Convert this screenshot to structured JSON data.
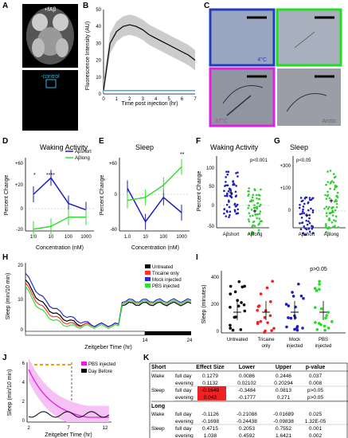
{
  "labels": {
    "A": "A",
    "B": "B",
    "C": "C",
    "D": "D",
    "E": "E",
    "F": "F",
    "G": "G",
    "H": "H",
    "I": "I",
    "J": "J",
    "K": "K"
  },
  "panelA": {
    "top": "+fAβ",
    "bottom": "-control"
  },
  "panelB": {
    "ylabel": "Fluorescence Intensity (AU)",
    "xlabel": "Time post injection (hr)"
  },
  "panelC": {
    "t1": "4°C",
    "t2": "37°C",
    "t3": "Arctic"
  },
  "panelD": {
    "title": "Waking Activity",
    "ylabel": "Percent Change",
    "xlabel": "Concentration (nM)",
    "legend1": "Aβshort",
    "legend2": "Aβlong",
    "star1": "*",
    "star2": "****"
  },
  "panelE": {
    "title": "Sleep",
    "ylabel": "Percent Change",
    "xlabel": "Concentration (nM)",
    "star": "**"
  },
  "panelF": {
    "title": "Waking Activity",
    "ylabel": "Percent Change",
    "p": "p<0.001",
    "x1": "Aβshort",
    "x2": "Aβlong"
  },
  "panelG": {
    "title": "Sleep",
    "p": "p<0.05",
    "x1": "Aβshort",
    "x2": "Aβlong"
  },
  "panelH": {
    "ylabel": "Sleep (min/10 min)",
    "xlabel": "Zeitgeber Time (hr)",
    "legend": [
      "Untreated",
      "Tricaine only",
      "Mock injected",
      "PBS injected"
    ]
  },
  "panelI": {
    "ylabel": "Sleep (minutes)",
    "p": "p>0.05",
    "groups": [
      "Untreated",
      "Tricaine only",
      "Mock injected",
      "PBS injected"
    ]
  },
  "panelJ": {
    "ylabel": "Sleep (min/10 min)",
    "xlabel": "Zeitgeber Time (hr)",
    "legend": [
      "PBS injected",
      "Day Before"
    ]
  },
  "panelK": {
    "headers": [
      "Short",
      "Effect Size",
      "Lower",
      "Upper",
      "p-value"
    ],
    "rows": [
      [
        "Wake",
        "full day",
        "0.1279",
        "0.0086",
        "0.2446",
        "0.037"
      ],
      [
        "",
        "evening",
        "0.1132",
        "0.02102",
        "0.20294",
        "0.008"
      ],
      [
        "Sleep",
        "full day",
        "-0.1649",
        "-0.3484",
        "0.0813",
        "p>0.05"
      ],
      [
        "",
        "evening",
        "0.042",
        "-0.1777",
        "0.271",
        "p>0.05"
      ]
    ],
    "long_header": "Long",
    "long_rows": [
      [
        "Wake",
        "full day",
        "-0.1126",
        "-0.21088",
        "-0.01689",
        "0.025"
      ],
      [
        "",
        "evening",
        "-0.1698",
        "-0.24438",
        "-0.09838",
        "1.32E-05"
      ],
      [
        "Sleep",
        "full day",
        "0.4715",
        "0.2053",
        "0.7552",
        "0.001"
      ],
      [
        "",
        "evening",
        "1.038",
        "0.4592",
        "1.6421",
        "0.002"
      ]
    ]
  },
  "chart_data": [
    {
      "panel": "B",
      "type": "line",
      "xlabel": "Time post injection (hr)",
      "ylabel": "Fluorescence Intensity (AU)",
      "xlim": [
        0,
        7
      ],
      "ylim": [
        0,
        50
      ],
      "series": [
        {
          "name": "+fAβ",
          "x": [
            0,
            0.5,
            1,
            1.5,
            2,
            2.5,
            3,
            3.5,
            4,
            4.5,
            5,
            5.5,
            6,
            6.5,
            7
          ],
          "values": [
            2,
            30,
            37,
            40,
            41,
            40,
            38,
            35,
            33,
            31,
            29,
            27,
            25,
            23,
            20
          ]
        },
        {
          "name": "-control",
          "x": [
            0,
            1,
            2,
            3,
            4,
            5,
            6,
            7
          ],
          "values": [
            2,
            2,
            2,
            2,
            2,
            2,
            2,
            2
          ]
        }
      ]
    },
    {
      "panel": "D",
      "type": "line",
      "xlabel": "Concentration (nM)",
      "ylabel": "Percent Change",
      "ylim": [
        -20,
        60
      ],
      "categories": [
        "1.0",
        "10",
        "100",
        "1000"
      ],
      "series": [
        {
          "name": "Aβshort",
          "values": [
            20,
            38,
            10,
            3
          ]
        },
        {
          "name": "Aβlong",
          "values": [
            -18,
            -15,
            -5,
            -5
          ]
        }
      ]
    },
    {
      "panel": "E",
      "type": "line",
      "xlabel": "Concentration (nM)",
      "ylabel": "Percent Change",
      "ylim": [
        -60,
        60
      ],
      "categories": [
        "1.0",
        "10",
        "100",
        "1000"
      ],
      "series": [
        {
          "name": "Aβshort",
          "values": [
            10,
            -45,
            -5,
            -30
          ]
        },
        {
          "name": "Aβlong",
          "values": [
            -10,
            -5,
            15,
            45
          ]
        }
      ]
    },
    {
      "panel": "K",
      "type": "table"
    }
  ]
}
